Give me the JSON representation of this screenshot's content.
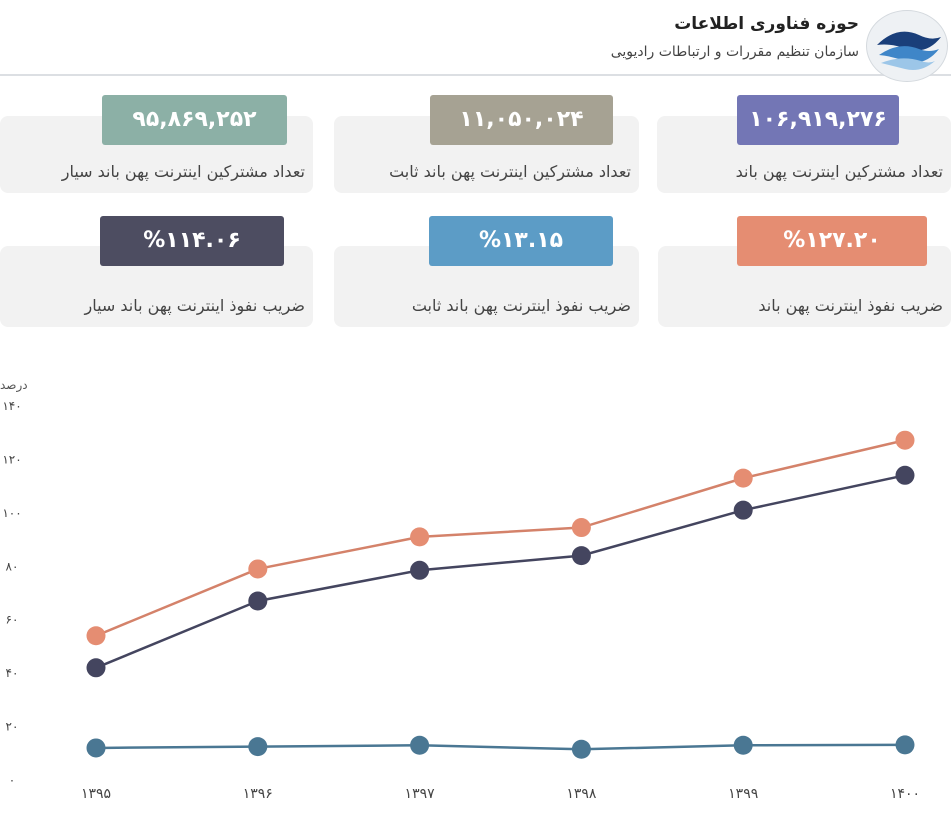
{
  "header": {
    "title": "حوزه فناوری اطلاعات",
    "subtitle": "سازمان تنظیم مقررات و ارتباطات رادیویی"
  },
  "stats": [
    {
      "value": "۱۰۶,۹۱۹,۲۷۶",
      "label": "تعداد مشترکین اینترنت پهن باند",
      "color": "#7376b5"
    },
    {
      "value": "۱۱,۰۵۰,۰۲۴",
      "label": "تعداد مشترکین اینترنت پهن باند ثابت",
      "color": "#a6a293"
    },
    {
      "value": "۹۵,۸۶۹,۲۵۲",
      "label": "تعداد مشترکین اینترنت پهن باند سیار",
      "color": "#8cb0a6"
    },
    {
      "value": "%۱۲۷.۲۰",
      "label": "ضریب نفوذ اینترنت پهن باند",
      "color": "#e58d72"
    },
    {
      "value": "%۱۳.۱۵",
      "label": "ضریب نفوذ اینترنت پهن باند ثابت",
      "color": "#5c9cc6"
    },
    {
      "value": "%۱۱۴.۰۶",
      "label": "ضریب نفوذ اینترنت پهن باند سیار",
      "color": "#4d4d61"
    }
  ],
  "chart_data": {
    "type": "line",
    "ylabel": "درصد",
    "categories": [
      "۱۳۹۵",
      "۱۳۹۶",
      "۱۳۹۷",
      "۱۳۹۸",
      "۱۳۹۹",
      "۱۴۰۰"
    ],
    "x": [
      1395,
      1396,
      1397,
      1398,
      1399,
      1400
    ],
    "yticks": [
      0,
      20,
      40,
      60,
      80,
      100,
      120,
      140
    ],
    "ytick_labels": [
      "۰",
      "۲۰",
      "۴۰",
      "۶۰",
      "۸۰",
      "۱۰۰",
      "۱۲۰",
      "۱۴۰"
    ],
    "ylim": [
      0,
      140
    ],
    "grid": false,
    "series": [
      {
        "values": [
          54,
          79,
          91,
          94.5,
          113,
          127.2
        ],
        "color": "#d4826a",
        "marker": "#e58d72"
      },
      {
        "values": [
          42,
          67,
          78.5,
          84,
          101,
          114.06
        ],
        "color": "#44455f",
        "marker": "#44455f"
      },
      {
        "values": [
          12,
          12.5,
          13,
          11.5,
          13,
          13.15
        ],
        "color": "#4a7793",
        "marker": "#4a7793"
      }
    ]
  }
}
